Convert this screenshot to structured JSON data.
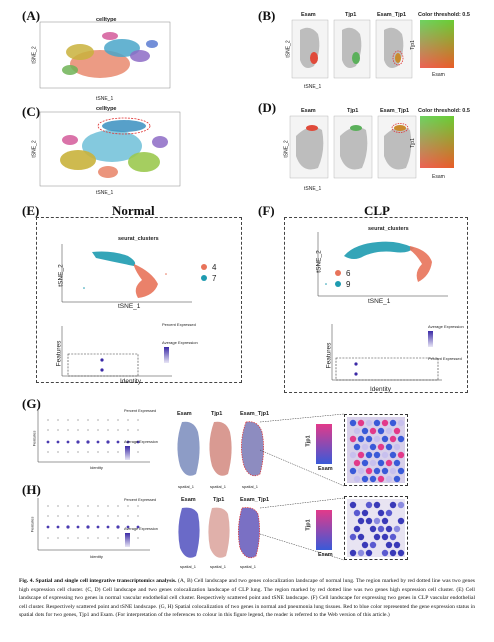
{
  "panels": {
    "A": {
      "label": "(A)",
      "title": "celltype",
      "xlabel": "tSNE_1",
      "ylabel": "tSNE_2",
      "ticks_x": [
        "-30",
        "-20",
        "-10",
        "0",
        "10",
        "20"
      ]
    },
    "B": {
      "label": "(B)",
      "plots": [
        "Esam",
        "Tjp1",
        "Esam_Tjp1"
      ],
      "color_title": "Color threshold: 0.5",
      "xlabel": "tSNE_1",
      "ylabel": "tSNE_2",
      "tjp1_axis": "Tjp1",
      "esam_axis": "Esam"
    },
    "C": {
      "label": "(C)",
      "title": "celltype",
      "xlabel": "tSNE_1",
      "ylabel": "tSNE_2"
    },
    "D": {
      "label": "(D)",
      "plots": [
        "Esam",
        "Tjp1",
        "Esam_Tjp1"
      ],
      "color_title": "Color threshold: 0.5",
      "xlabel": "tSNE_1",
      "ylabel": "tSNE_2",
      "tjp1_axis": "Tjp1",
      "esam_axis": "Esam"
    },
    "E": {
      "label": "(E)",
      "heading": "Normal",
      "title": "seurat_clusters",
      "xlabel": "tSNE_1",
      "ylabel": "tSNE_2",
      "legend": [
        "4",
        "7"
      ],
      "dot_xlabel": "Identity",
      "dot_ylabel": "Features",
      "pct_title": "Percent Expressed",
      "avg_title": "Average Expression"
    },
    "F": {
      "label": "(F)",
      "heading": "CLP",
      "title": "seurat_clusters",
      "xlabel": "tSNE_1",
      "ylabel": "tSNE_2",
      "legend": [
        "6",
        "9"
      ],
      "dot_xlabel": "Identity",
      "dot_ylabel": "Features",
      "pct_title": "Percent Expressed",
      "avg_title": "Average Expression"
    },
    "G": {
      "label": "(G)",
      "spatial": [
        "Esam",
        "Tjp1",
        "Esam_Tjp1"
      ],
      "xlabel": "spatial_1",
      "zoom_y": "Tjp1",
      "zoom_x": "Esam",
      "dot_xlabel": "Identity",
      "dot_ylabel": "Features",
      "pct_title": "Percent Expressed",
      "avg_title": "Average Expression"
    },
    "H": {
      "label": "(H)",
      "spatial": [
        "Esam",
        "Tjp1",
        "Esam_Tjp1"
      ],
      "xlabel": "spatial_1",
      "zoom_y": "Tjp1",
      "zoom_x": "Esam",
      "dot_xlabel": "Identity",
      "dot_ylabel": "Features",
      "pct_title": "Percent Expressed",
      "avg_title": "Average Expression"
    }
  },
  "caption": {
    "lead": "Fig. 4. Spatial and single cell integrative transcriptomics analysis.",
    "body": " (A, B) Cell landscape and two genes colocalization landscape of normal lung. The region marked by red dotted line was two genes high expression cell cluster. (C, D) Cell landscape and two genes colocalization landscape of CLP lung. The region marked by red dotted line was two genes high expression cell cluster. (E) Cell landscape of expressing two genes in normal vascular endothelial cell cluster. Respectively scattered point and tSNE landscape. (F) Cell landscape for expressing two genes in CLP vascular endothelial cell cluster. Respectively scattered point and tSNE landscape. (G, H) Spatial colocalization of two genes in normal and pneumonia lung tissues. Red to blue color represented the gene expression status in spatial dots for two genes, Tjp1 and Esam. (For interpretation of the references to colour in this figure legend, the reader is referred to the Web version of this article.)"
  },
  "colors": {
    "red": "#e8735a",
    "teal": "#1e9bb0",
    "purple": "#3b2aa6",
    "lightpurple": "#cfc8ee"
  }
}
